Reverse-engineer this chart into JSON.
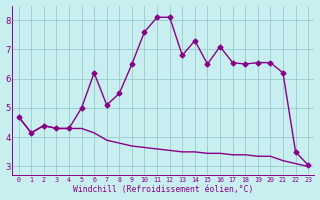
{
  "xlabel": "Windchill (Refroidissement éolien,°C)",
  "background_color": "#c8eef0",
  "line_color": "#880088",
  "grid_color": "#99cccc",
  "xlim": [
    -0.5,
    23.5
  ],
  "ylim": [
    2.7,
    8.5
  ],
  "xticks": [
    0,
    1,
    2,
    3,
    4,
    5,
    6,
    7,
    8,
    9,
    10,
    11,
    12,
    13,
    14,
    15,
    16,
    17,
    18,
    19,
    20,
    21,
    22,
    23
  ],
  "yticks": [
    3,
    4,
    5,
    6,
    7,
    8
  ],
  "series1_x": [
    0,
    1,
    2,
    3,
    4,
    5,
    6,
    7,
    8,
    9,
    10,
    11,
    12,
    13,
    14,
    15,
    16,
    17,
    18,
    19,
    20,
    21,
    22,
    23
  ],
  "series1_y": [
    4.7,
    4.15,
    4.4,
    4.3,
    4.3,
    4.3,
    4.15,
    3.9,
    3.8,
    3.7,
    3.65,
    3.6,
    3.55,
    3.5,
    3.5,
    3.45,
    3.45,
    3.4,
    3.4,
    3.35,
    3.35,
    3.2,
    3.1,
    3.0
  ],
  "series2_x": [
    0,
    1,
    2,
    3,
    4,
    5,
    6,
    7,
    8,
    9,
    10,
    11,
    12,
    13,
    14,
    15,
    16,
    17,
    18,
    19,
    20,
    21,
    22,
    23
  ],
  "series2_y": [
    4.7,
    4.15,
    4.4,
    4.3,
    4.3,
    5.0,
    6.2,
    5.1,
    5.5,
    6.5,
    7.6,
    8.1,
    8.1,
    6.8,
    7.3,
    6.5,
    7.1,
    6.55,
    6.5,
    6.55,
    6.55,
    6.2,
    3.5,
    3.05
  ],
  "marker": "D",
  "marker_size": 2.5,
  "line_width": 1.0
}
